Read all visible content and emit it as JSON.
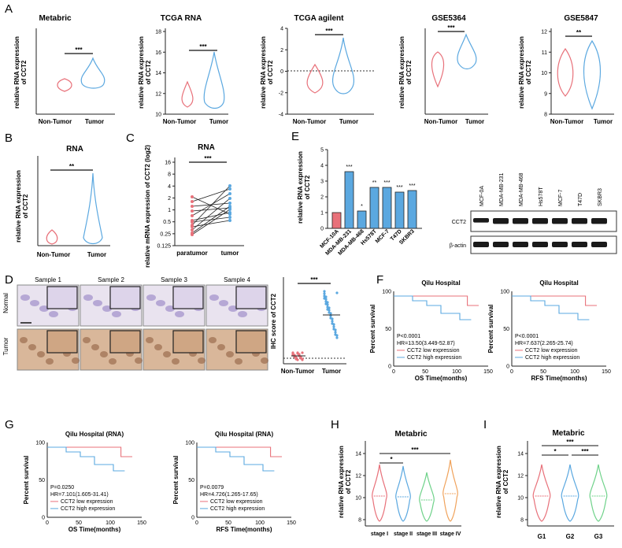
{
  "panels": {
    "A": "A",
    "B": "B",
    "C": "C",
    "D": "D",
    "E": "E",
    "F": "F",
    "G": "G",
    "H": "H",
    "I": "I"
  },
  "common": {
    "ylabel_ccT2": "relative RNA expression",
    "ylabel_ccT2_2": "of CCT2",
    "nontumor": "Non-Tumor",
    "tumor": "Tumor",
    "sig3": "***",
    "sig2": "**",
    "sig1": "*"
  },
  "chart_data": [
    {
      "type": "violin",
      "title": "Metabric",
      "categories": [
        "Non-Tumor",
        "Tumor"
      ],
      "ylim": [
        7.5,
        14
      ],
      "significance": "***"
    },
    {
      "type": "violin",
      "title": "TCGA RNA",
      "categories": [
        "Non-Tumor",
        "Tumor"
      ],
      "yticks": [
        "10",
        "12",
        "14",
        "16",
        "18"
      ],
      "ylim": [
        10,
        18
      ],
      "significance": "***"
    },
    {
      "type": "violin",
      "title": "TCGA agilent",
      "categories": [
        "Non-Tumor",
        "Tumor"
      ],
      "yticks": [
        "-4",
        "-2",
        "0",
        "2",
        "4"
      ],
      "ylim": [
        -4,
        4
      ],
      "significance": "***"
    },
    {
      "type": "violin",
      "title": "GSE5364",
      "categories": [
        "Non-Tumor",
        "Tumor"
      ],
      "ylim": [
        5,
        14
      ],
      "significance": "***"
    },
    {
      "type": "violin",
      "title": "GSE5847",
      "categories": [
        "Non-Tumor",
        "Tumor"
      ],
      "yticks": [
        "8",
        "9",
        "10",
        "11",
        "12"
      ],
      "ylim": [
        8,
        12
      ],
      "significance": "**"
    },
    {
      "type": "violin",
      "title": "RNA",
      "categories": [
        "Non-Tumor",
        "Tumor"
      ],
      "significance": "**"
    },
    {
      "type": "paired",
      "title": "RNA",
      "ylabel": "relative mRNA expression of CCT2 (log2)",
      "categories": [
        "paratumor",
        "tumor"
      ],
      "yticks": [
        "16",
        "8",
        "4",
        "2",
        "1",
        "0.5",
        "0.25",
        "0.125"
      ],
      "significance": "***"
    },
    {
      "type": "bar",
      "ylabel": "relative RNA expression of CCT2",
      "categories": [
        "MCF-10A",
        "MDA-MB-231",
        "MDA-MB-468",
        "Hs578T",
        "MCF-7",
        "T47D",
        "SKBR3"
      ],
      "values": [
        1.0,
        3.6,
        1.1,
        2.6,
        2.6,
        2.3,
        2.4
      ],
      "ylim": [
        0,
        5
      ],
      "significance": [
        "",
        "***",
        "*",
        "**",
        "***",
        "***",
        "***"
      ]
    },
    {
      "type": "scatter",
      "ylabel": "IHC score of CCT2",
      "categories": [
        "Non-Tumor",
        "Tumor"
      ],
      "significance": "***"
    },
    {
      "type": "kaplan-meier",
      "title": "Qilu Hospital",
      "xlabel": "OS Time(months)",
      "ylabel": "Percent survival",
      "xticks": [
        "0",
        "50",
        "100",
        "150"
      ],
      "yticks": [
        "0",
        "50",
        "100"
      ],
      "pvalue": "P<0.0001",
      "hr": "HR=13.50(3.449-52.87)",
      "series": [
        {
          "name": "CCT2 low expression"
        },
        {
          "name": "CCT2 high expression"
        }
      ]
    },
    {
      "type": "kaplan-meier",
      "title": "Qilu Hospital",
      "xlabel": "RFS Time(months)",
      "ylabel": "Percent survival",
      "xticks": [
        "0",
        "50",
        "100",
        "150"
      ],
      "yticks": [
        "0",
        "50",
        "100"
      ],
      "pvalue": "P<0.0001",
      "hr": "HR=7.637(2.265-25.74)",
      "series": [
        {
          "name": "CCT2 low expression"
        },
        {
          "name": "CCT2 high expression"
        }
      ]
    },
    {
      "type": "kaplan-meier",
      "title": "Qilu Hospital (RNA)",
      "xlabel": "OS Time(months)",
      "ylabel": "Percent survival",
      "xticks": [
        "0",
        "50",
        "100",
        "150"
      ],
      "yticks": [
        "0",
        "50",
        "100"
      ],
      "pvalue": "P=0.0250",
      "hr": "HR=7.101(1.605-31.41)",
      "series": [
        {
          "name": "CCT2 low expression"
        },
        {
          "name": "CCT2 high expression"
        }
      ]
    },
    {
      "type": "kaplan-meier",
      "title": "Qilu Hospital (RNA)",
      "xlabel": "RFS Time(months)",
      "ylabel": "Percent survival",
      "xticks": [
        "0",
        "50",
        "100",
        "150"
      ],
      "yticks": [
        "0",
        "50",
        "100"
      ],
      "pvalue": "P=0.0079",
      "hr": "HR=4.726(1.265-17.65)",
      "series": [
        {
          "name": "CCT2 low expression"
        },
        {
          "name": "CCT2 high expression"
        }
      ]
    },
    {
      "type": "violin",
      "title": "Metabric",
      "categories": [
        "stage I",
        "stage II",
        "stage III",
        "stage IV"
      ],
      "yticks": [
        "8",
        "10",
        "12",
        "14"
      ],
      "ylim": [
        8,
        14
      ],
      "significance": [
        "*",
        "***"
      ]
    },
    {
      "type": "violin",
      "title": "Metabric",
      "categories": [
        "G1",
        "G2",
        "G3"
      ],
      "yticks": [
        "8",
        "10",
        "12",
        "14"
      ],
      "ylim": [
        8,
        14
      ],
      "significance": [
        "***",
        "*",
        "***"
      ]
    }
  ],
  "panelD": {
    "samples": [
      "Sample 1",
      "Sample 2",
      "Sample 3",
      "Sample 4"
    ],
    "rows": [
      "Normal",
      "Tumor"
    ]
  },
  "panelE_blot": {
    "lanes": [
      "MCF-0A",
      "MDA-MB-231",
      "MDA-MB-468",
      "Hs578T",
      "MCF-7",
      "T47D",
      "SKBR3"
    ],
    "proteins": [
      "CCT2",
      "β-actin"
    ]
  },
  "colors": {
    "nontumor": "#e8717a",
    "tumor": "#5ba8e0",
    "low": "#e8717a",
    "high": "#5ba8e0",
    "g3": "#6fd28a",
    "stage3": "#6fd28a",
    "stage4": "#f0a35c"
  }
}
